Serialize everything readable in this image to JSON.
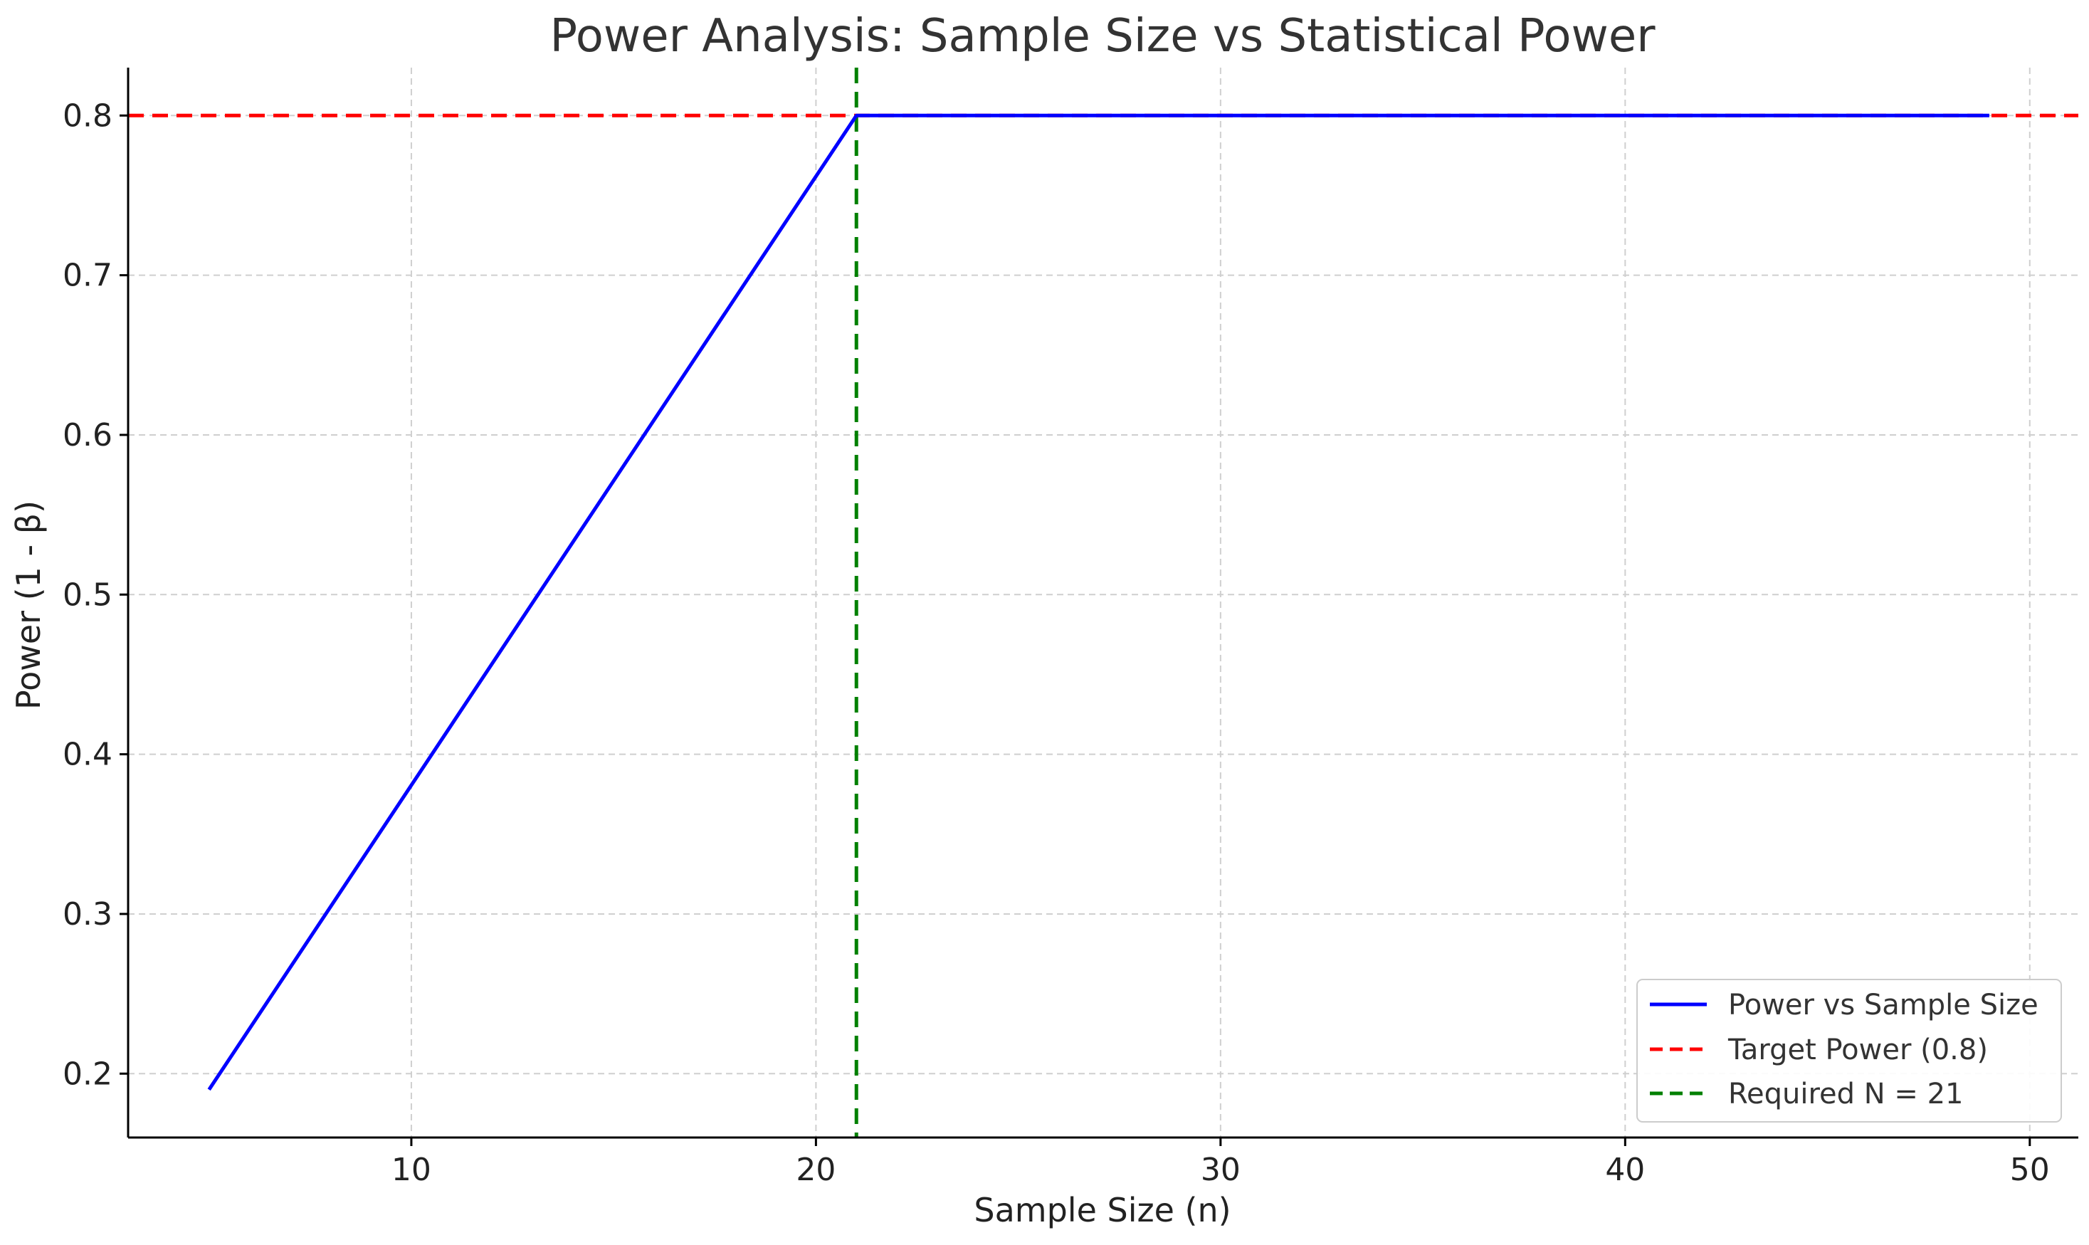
{
  "chart_data": {
    "type": "line",
    "title": "Power Analysis: Sample Size vs Statistical Power",
    "xlabel": "Sample Size (n)",
    "ylabel": "Power (1 - β)",
    "xlim": [
      3,
      51.2
    ],
    "ylim": [
      0.16,
      0.83
    ],
    "xticks": [
      10,
      20,
      30,
      40,
      50
    ],
    "yticks": [
      0.2,
      0.3,
      0.4,
      0.5,
      0.6,
      0.7,
      0.8
    ],
    "xtick_labels": [
      "10",
      "20",
      "30",
      "40",
      "50"
    ],
    "ytick_labels": [
      "0.2",
      "0.3",
      "0.4",
      "0.5",
      "0.6",
      "0.7",
      "0.8"
    ],
    "grid": true,
    "legend_position": "lower-right",
    "series": [
      {
        "name": "Power vs Sample Size",
        "color": "#0000ff",
        "style": "solid",
        "x": [
          5,
          21,
          49
        ],
        "y": [
          0.19,
          0.8,
          0.8
        ]
      }
    ],
    "reference_lines": [
      {
        "name": "Target Power (0.8)",
        "orientation": "horizontal",
        "value": 0.8,
        "color": "#ff0000",
        "style": "dashed"
      },
      {
        "name": "Required N = 21",
        "orientation": "vertical",
        "value": 21,
        "color": "#008000",
        "style": "dashed"
      }
    ]
  }
}
